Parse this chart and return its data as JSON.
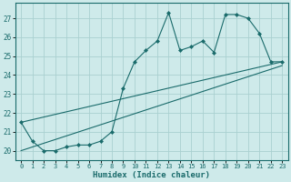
{
  "line1_x": [
    0,
    1,
    2,
    3,
    4,
    5,
    6,
    7,
    8,
    9,
    10,
    11,
    12,
    13,
    14,
    15,
    16,
    17,
    18,
    19,
    20,
    21,
    22,
    23
  ],
  "line1_y": [
    21.5,
    20.5,
    20.0,
    20.0,
    20.2,
    20.3,
    20.3,
    20.5,
    21.0,
    23.3,
    24.7,
    25.3,
    25.8,
    27.3,
    25.3,
    25.5,
    25.8,
    25.2,
    27.2,
    27.2,
    27.0,
    26.2,
    24.7,
    24.7
  ],
  "line2_x": [
    0,
    23
  ],
  "line2_y": [
    20.0,
    24.5
  ],
  "line3_x": [
    0,
    23
  ],
  "line3_y": [
    21.5,
    24.7
  ],
  "line_color": "#1a6b6b",
  "marker_color": "#1a6b6b",
  "bg_color": "#ceeaea",
  "grid_color": "#aad0d0",
  "xlabel": "Humidex (Indice chaleur)",
  "ylabel_ticks": [
    20,
    21,
    22,
    23,
    24,
    25,
    26,
    27
  ],
  "xlim": [
    -0.5,
    23.5
  ],
  "ylim": [
    19.5,
    27.8
  ],
  "xticks": [
    0,
    1,
    2,
    3,
    4,
    5,
    6,
    7,
    8,
    9,
    10,
    11,
    12,
    13,
    14,
    15,
    16,
    17,
    18,
    19,
    20,
    21,
    22,
    23
  ]
}
